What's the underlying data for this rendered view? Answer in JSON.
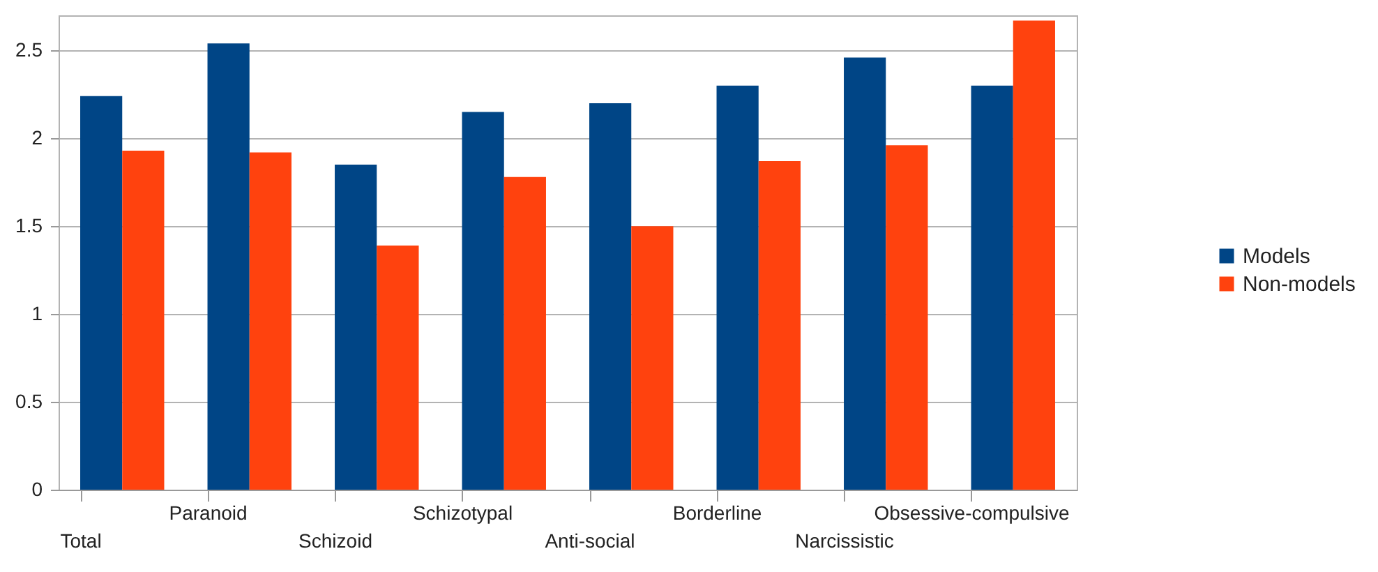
{
  "chart_data": {
    "type": "bar",
    "categories": [
      "Total",
      "Paranoid",
      "Schizoid",
      "Schizotypal",
      "Anti-social",
      "Borderline",
      "Narcissistic",
      "Obsessive-compulsive"
    ],
    "series": [
      {
        "name": "Models",
        "color": "#004586",
        "values": [
          2.24,
          2.54,
          1.85,
          2.15,
          2.2,
          2.3,
          2.46,
          2.3
        ]
      },
      {
        "name": "Non-models",
        "color": "#ff420e",
        "values": [
          1.93,
          1.92,
          1.39,
          1.78,
          1.5,
          1.87,
          1.96,
          2.67
        ]
      }
    ],
    "ylim": [
      0,
      2.7
    ],
    "yticks": [
      0,
      0.5,
      1,
      1.5,
      2,
      2.5
    ],
    "grid": "y",
    "legend": "right"
  }
}
